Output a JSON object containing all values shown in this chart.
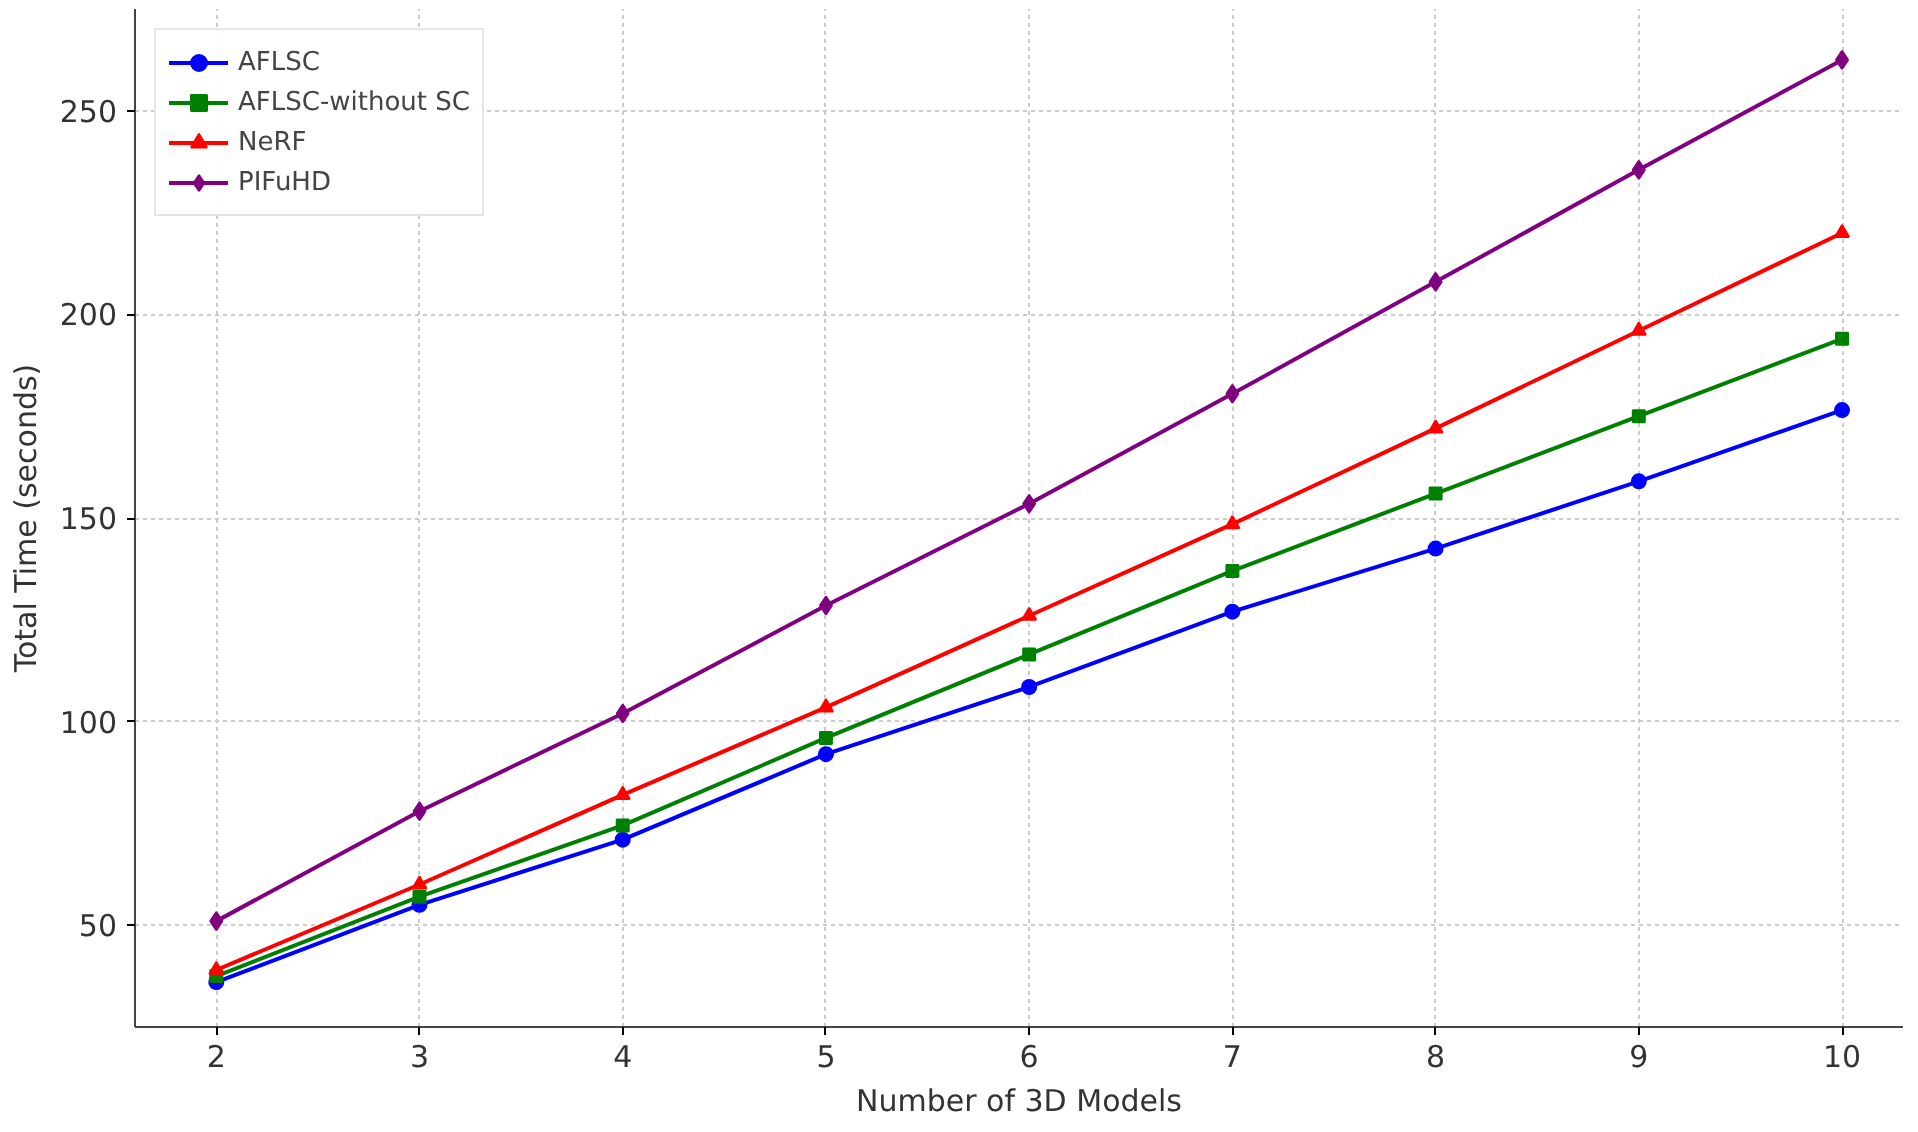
{
  "chart_data": {
    "type": "line",
    "xlabel": "Number of 3D Models",
    "ylabel": "Total Time (seconds)",
    "x": [
      2,
      3,
      4,
      5,
      6,
      7,
      8,
      9,
      10
    ],
    "series": [
      {
        "name": "AFLSC",
        "color": "#0000ff",
        "marker": "circle",
        "values": [
          36,
          55,
          71,
          92,
          108.5,
          127,
          142.5,
          159,
          176.5
        ]
      },
      {
        "name": "AFLSC-without SC",
        "color": "#008000",
        "marker": "square",
        "values": [
          37.5,
          57,
          74.5,
          96,
          116.5,
          137,
          156,
          175,
          194
        ]
      },
      {
        "name": "NeRF",
        "color": "#ff0000",
        "marker": "triangle",
        "values": [
          39,
          60,
          82,
          103.5,
          126,
          148.5,
          172,
          196,
          220
        ]
      },
      {
        "name": "PIFuHD",
        "color": "#800080",
        "marker": "diamond",
        "values": [
          51,
          78,
          102,
          128.5,
          153.5,
          180.5,
          208,
          235.5,
          262.5
        ]
      }
    ],
    "xlim": [
      1.6,
      10.3
    ],
    "ylim": [
      25,
      275
    ],
    "xticks": [
      2,
      3,
      4,
      5,
      6,
      7,
      8,
      9,
      10
    ],
    "yticks": [
      50,
      100,
      150,
      200,
      250
    ],
    "grid": true,
    "legend": "top left",
    "line_style": "solid"
  }
}
